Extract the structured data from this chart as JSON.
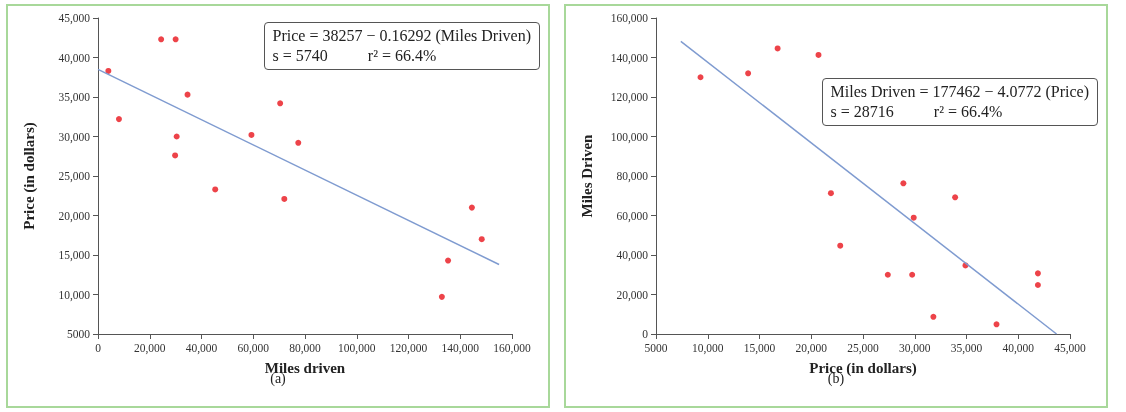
{
  "chart_data": [
    {
      "type": "scatter",
      "subtitle": "(a)",
      "xlabel": "Miles driven",
      "ylabel": "Price (in dollars)",
      "annotations": [
        "Price = 38257 − 0.16292 (Miles Driven)",
        "s = 5740          r² = 66.4%"
      ],
      "x": [
        4000,
        8100,
        24400,
        30000,
        34600,
        30400,
        29800,
        45300,
        59300,
        70400,
        77400,
        72000,
        132900,
        135300,
        144500,
        148300
      ],
      "series": [
        {
          "color": "#e8141b",
          "values": [
            38300,
            32200,
            42300,
            42300,
            35300,
            30000,
            27600,
            23300,
            30200,
            34200,
            29200,
            22100,
            9700,
            14300,
            21000,
            17000
          ]
        },
        {
          "type": "line",
          "marker": "none",
          "color": "#7f9bd0",
          "x": [
            0,
            155000
          ],
          "values": [
            38500,
            13800
          ]
        }
      ],
      "marker": "circle",
      "grid": false,
      "xlim": [
        0,
        160000
      ],
      "xticks": [
        0,
        {
          "value": 20000,
          "label": "20,000"
        },
        {
          "value": 40000,
          "label": "40,000"
        },
        {
          "value": 60000,
          "label": "60,000"
        },
        {
          "value": 80000,
          "label": "80,000"
        },
        {
          "value": 100000,
          "label": "100,000"
        },
        {
          "value": 120000,
          "label": "120,000"
        },
        {
          "value": 140000,
          "label": "140,000"
        },
        {
          "value": 160000,
          "label": "160,000"
        }
      ],
      "ylim": [
        5000,
        45000
      ],
      "yticks": [
        5000,
        {
          "value": 10000,
          "label": "10,000"
        },
        {
          "value": 15000,
          "label": "15,000"
        },
        {
          "value": 20000,
          "label": "20,000"
        },
        {
          "value": 25000,
          "label": "25,000"
        },
        {
          "value": 30000,
          "label": "30,000"
        },
        {
          "value": 35000,
          "label": "35,000"
        },
        {
          "value": 40000,
          "label": "40,000"
        },
        {
          "value": 45000,
          "label": "45,000"
        }
      ]
    },
    {
      "type": "scatter",
      "subtitle": "(b)",
      "xlabel": "Price (in dollars)",
      "ylabel": "Miles Driven",
      "annotations": [
        "Miles Driven = 177462 − 4.0772 (Price)",
        "s = 28716          r² = 66.4%"
      ],
      "x": [
        9300,
        13900,
        16750,
        20700,
        21900,
        22800,
        27400,
        28900,
        29750,
        29900,
        31800,
        33900,
        34900,
        37900,
        41900,
        41900
      ],
      "series": [
        {
          "color": "#e8141b",
          "values": [
            130000,
            132000,
            144600,
            141300,
            71300,
            44700,
            30000,
            76300,
            30000,
            58900,
            8700,
            69200,
            34700,
            4900,
            30700,
            24800
          ]
        },
        {
          "type": "line",
          "marker": "none",
          "color": "#7f9bd0",
          "x": [
            7400,
            43700
          ],
          "values": [
            148200,
            0
          ]
        }
      ],
      "marker": "circle",
      "grid": false,
      "xlim": [
        5000,
        45000
      ],
      "xticks": [
        5000,
        {
          "value": 10000,
          "label": "10,000"
        },
        {
          "value": 15000,
          "label": "15,000"
        },
        {
          "value": 20000,
          "label": "20,000"
        },
        {
          "value": 25000,
          "label": "25,000"
        },
        {
          "value": 30000,
          "label": "30,000"
        },
        {
          "value": 35000,
          "label": "35,000"
        },
        {
          "value": 40000,
          "label": "40,000"
        },
        {
          "value": 45000,
          "label": "45,000"
        }
      ],
      "ylim": [
        0,
        160000
      ],
      "yticks": [
        0,
        {
          "value": 20000,
          "label": "20,000"
        },
        {
          "value": 40000,
          "label": "40,000"
        },
        {
          "value": 60000,
          "label": "60,000"
        },
        {
          "value": 80000,
          "label": "80,000"
        },
        {
          "value": 100000,
          "label": "100,000"
        },
        {
          "value": 120000,
          "label": "120,000"
        },
        {
          "value": 140000,
          "label": "140,000"
        },
        {
          "value": 160000,
          "label": "160,000"
        }
      ]
    }
  ]
}
